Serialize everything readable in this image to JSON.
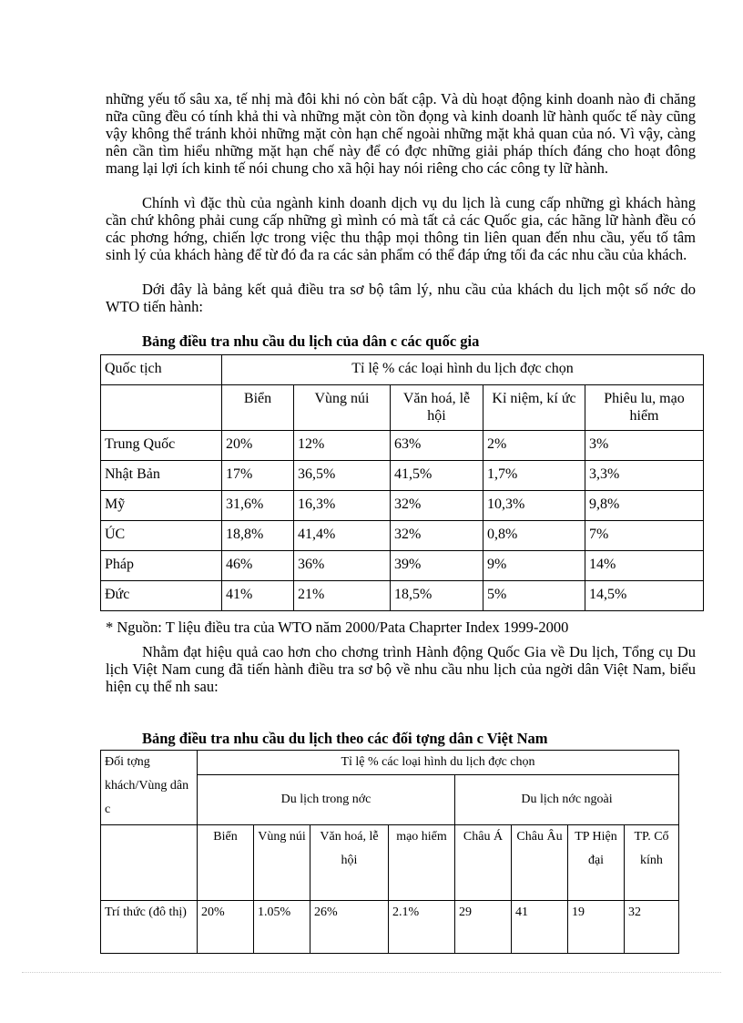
{
  "paragraphs": [
    "những yếu tố sâu xa, tế nhị mà đôi khi nó còn bất cập. Và dù hoạt động kinh doanh nào đi chăng nữa cũng đều có tính khả thi và những mặt còn tồn đọng và kinh doanh lữ hành quốc tế này cũng vậy không thể tránh khỏi những mặt còn hạn chế ngoài những mặt khả quan của nó. Vì vậy, càng nên cần tìm hiểu những mặt hạn chế này để có đợc  những giải pháp thích đáng cho hoạt đông mang lại lợi ích kinh tế nói chung cho xã hội hay nói riêng cho các công ty lữ hành.",
    "Chính vì đặc thù của ngành kinh doanh dịch vụ du lịch là cung cấp những gì khách hàng cần  chứ không phải cung cấp những gì mình có mà tất cả các Quốc gia, các hãng lữ hành đều có các phơng  hớng,  chiến lợc  trong việc thu thập mọi thông tin liên quan đến nhu cầu, yếu tố tâm sinh lý của khách hàng để từ đó đa  ra các sản phẩm có thể đáp ứng tối đa các nhu cầu của khách.",
    "Dới  đây là bảng kết quả điều tra sơ bộ tâm lý, nhu cầu của khách du lịch một số nớc  do WTO tiến hành:",
    "* Nguồn: T  liệu điều tra của WTO năm 2000/Pata Chaprter Index 1999-2000",
    "Nhằm đạt hiệu quả cao hơn cho chơng  trình Hành động Quốc Gia về Du lịch, Tổng cụ Du lịch Việt Nam cung đã tiến hành điều tra sơ bộ về nhu cầu nhu lịch của ngời  dân Việt Nam, biểu hiện cụ thể nh  sau:"
  ],
  "table1": {
    "title": "Bảng điều tra nhu cầu du lịch của dân c  các quốc gia",
    "col0": "Quốc tịch",
    "group": "Tỉ lệ % các loại hình du lịch đợc  chọn",
    "headers": [
      "Biển",
      "Vùng núi",
      "Văn hoá, lễ hội",
      "Kỉ niệm, kí ức",
      "Phiêu lu, mạo hiểm"
    ],
    "rows": [
      [
        "Trung Quốc",
        "20%",
        "12%",
        "63%",
        "2%",
        "3%"
      ],
      [
        "Nhật Bản",
        "17%",
        "36,5%",
        "41,5%",
        "1,7%",
        "3,3%"
      ],
      [
        "Mỹ",
        "31,6%",
        "16,3%",
        "32%",
        "10,3%",
        "9,8%"
      ],
      [
        "ÚC",
        "18,8%",
        "41,4%",
        "32%",
        "0,8%",
        "7%"
      ],
      [
        "Pháp",
        "46%",
        "36%",
        "39%",
        "9%",
        "14%"
      ],
      [
        "Đức",
        "41%",
        "21%",
        "18,5%",
        "5%",
        "14,5%"
      ]
    ]
  },
  "table2": {
    "title": "Bảng điều tra nhu cầu du lịch theo các đối tợng  dân c  Việt Nam",
    "col0": "Đối tợng khách/Vùng dân c",
    "group": "Tỉ lệ % các loại hình du lịch đợc  chọn",
    "domestic": "Du lịch trong nớc",
    "foreign": "Du lịch nớc  ngoài",
    "headers": [
      "Biển",
      "Vùng núi",
      "Văn hoá, lễ hội",
      "mạo hiểm",
      "Châu Á",
      "Châu Âu",
      "TP Hiện đại",
      "TP. Cổ kính"
    ],
    "rows": [
      [
        "Trí thức (đô thị)",
        "20%",
        "1.05%",
        "26%",
        "2.1%",
        "29",
        "41",
        "19",
        "32"
      ]
    ]
  }
}
